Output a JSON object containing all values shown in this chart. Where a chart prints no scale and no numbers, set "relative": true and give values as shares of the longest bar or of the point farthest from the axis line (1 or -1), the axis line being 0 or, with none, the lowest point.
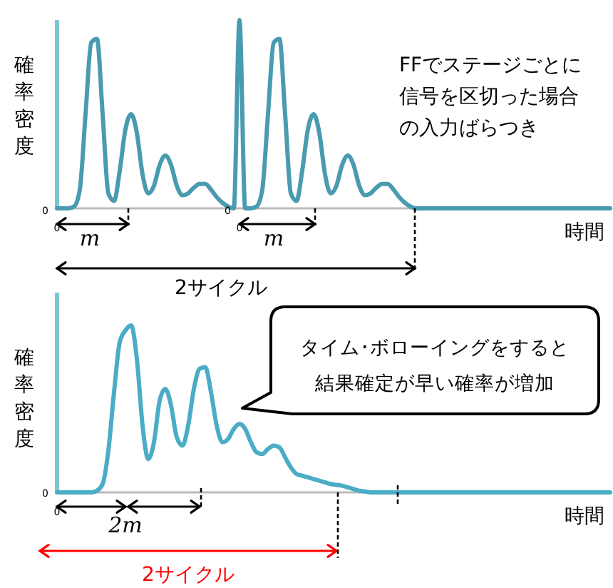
{
  "chart_data": [
    {
      "type": "line",
      "relative": true,
      "xlabel": "時間",
      "ylabel": "確率密度",
      "color": "#4a9bb0",
      "categories": [
        null,
        null,
        null,
        null,
        null,
        null,
        null,
        null,
        null,
        null,
        null,
        null,
        null,
        null,
        null,
        null,
        null,
        null,
        null,
        null,
        null,
        null,
        null,
        null,
        null,
        null,
        null,
        null,
        null,
        null,
        null,
        null,
        null,
        null,
        null,
        null,
        null,
        null,
        null,
        null,
        null,
        null,
        null,
        null,
        null,
        null,
        null,
        null,
        null,
        null,
        null,
        null,
        null,
        null,
        null,
        null,
        null,
        null,
        null,
        null,
        null,
        null,
        null,
        null,
        null,
        null,
        null,
        null,
        null,
        null,
        null,
        null,
        null,
        null,
        null,
        null,
        null,
        null,
        null,
        null,
        null,
        null,
        null,
        null,
        null,
        null,
        null,
        null,
        null,
        null,
        null,
        null,
        null,
        null,
        null,
        null,
        null,
        null
      ],
      "values": [
        0,
        0,
        0,
        0.01,
        0.1,
        0.5,
        0.88,
        0.9,
        0.5,
        0.08,
        0.04,
        0.2,
        0.42,
        0.5,
        0.4,
        0.18,
        0.08,
        0.12,
        0.23,
        0.28,
        0.23,
        0.12,
        0.07,
        0.08,
        0.11,
        0.13,
        0.13,
        0.1,
        0.06,
        0.03,
        0.01,
        0,
        1,
        0,
        0,
        0.01,
        0.1,
        0.5,
        0.88,
        0.9,
        0.5,
        0.08,
        0.04,
        0.2,
        0.42,
        0.5,
        0.4,
        0.18,
        0.08,
        0.12,
        0.23,
        0.28,
        0.23,
        0.12,
        0.07,
        0.08,
        0.11,
        0.13,
        0.13,
        0.1,
        0.06,
        0.03,
        0.01,
        0,
        0,
        0,
        0,
        0,
        0,
        0,
        0,
        0,
        0,
        0,
        0,
        0,
        0,
        0,
        0,
        0,
        0,
        0,
        0,
        0,
        0,
        0,
        0,
        0,
        0,
        0,
        0,
        0,
        0,
        0,
        0,
        0,
        0,
        0
      ],
      "annotations": [
        "FFでステージごとに",
        "信号を区切った場合",
        "の入力ばらつき",
        "m",
        "m",
        "2サイクル",
        "0",
        "0",
        "0",
        "0"
      ]
    },
    {
      "type": "line",
      "relative": true,
      "xlabel": "時間",
      "ylabel": "確率密度",
      "color": "#4bacc6",
      "categories": [
        null,
        null,
        null,
        null,
        null,
        null,
        null,
        null,
        null,
        null,
        null,
        null,
        null,
        null,
        null,
        null,
        null,
        null,
        null,
        null,
        null,
        null,
        null,
        null,
        null,
        null,
        null,
        null,
        null,
        null,
        null,
        null,
        null,
        null,
        null,
        null,
        null,
        null,
        null,
        null,
        null,
        null,
        null,
        null,
        null,
        null,
        null,
        null,
        null,
        null,
        null,
        null,
        null,
        null,
        null,
        null,
        null,
        null,
        null,
        null,
        null,
        null,
        null,
        null,
        null,
        null,
        null,
        null,
        null,
        null,
        null,
        null,
        null,
        null,
        null,
        null,
        null,
        null,
        null,
        null,
        null,
        null,
        null,
        null,
        null,
        null,
        null,
        null,
        null,
        null,
        null,
        null,
        null,
        null,
        null,
        null,
        null,
        null
      ],
      "values": [
        0,
        0,
        0,
        0,
        0,
        0,
        0,
        0.01,
        0.05,
        0.25,
        0.6,
        0.9,
        0.97,
        1,
        0.8,
        0.4,
        0.2,
        0.3,
        0.55,
        0.62,
        0.52,
        0.33,
        0.28,
        0.4,
        0.62,
        0.74,
        0.75,
        0.6,
        0.4,
        0.3,
        0.32,
        0.38,
        0.41,
        0.38,
        0.3,
        0.24,
        0.23,
        0.26,
        0.28,
        0.27,
        0.21,
        0.15,
        0.11,
        0.1,
        0.09,
        0.08,
        0.07,
        0.06,
        0.05,
        0.045,
        0.04,
        0.03,
        0.02,
        0.01,
        0.005,
        0,
        0,
        0,
        0,
        0,
        0,
        0,
        0,
        0,
        0,
        0,
        0,
        0,
        0,
        0,
        0,
        0,
        0,
        0,
        0,
        0,
        0,
        0,
        0,
        0,
        0,
        0,
        0,
        0,
        0,
        0,
        0,
        0,
        0,
        0,
        0,
        0,
        0,
        0,
        0,
        0,
        0,
        0
      ],
      "annotations": [
        "タイム･ボローイングをすると",
        "結果確定が早い確率が増加",
        "2m",
        "2サイクル",
        "0",
        "0"
      ]
    }
  ]
}
